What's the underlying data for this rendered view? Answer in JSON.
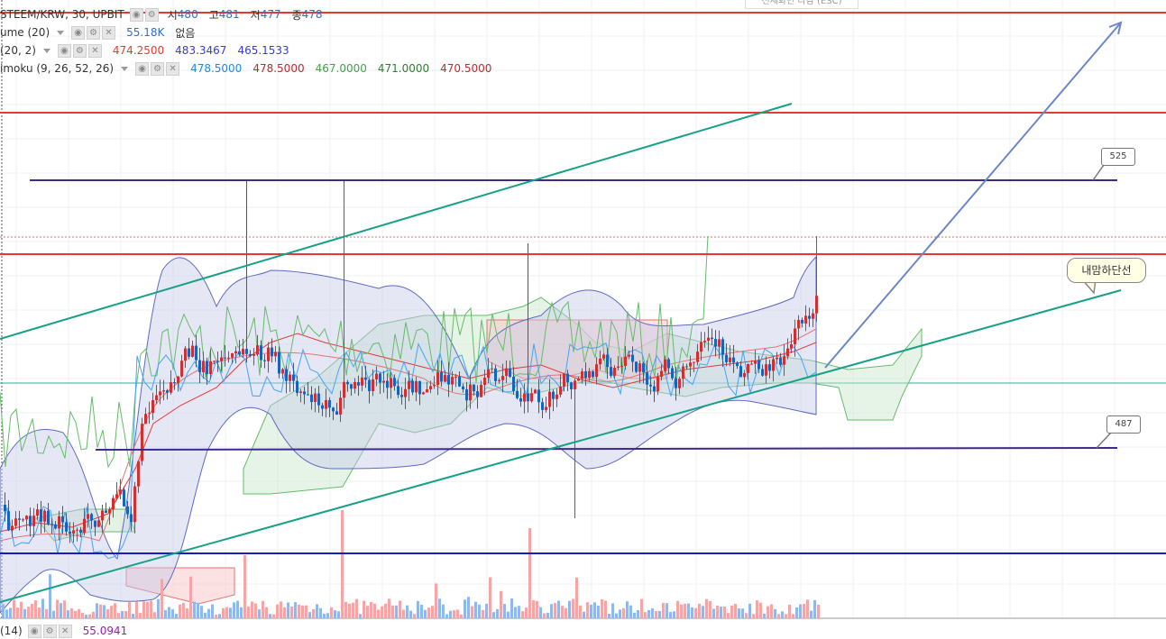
{
  "header": {
    "symbol": "STEEM/KRW, 30, UPBIT",
    "ohlc": [
      {
        "label": "시",
        "value": "480"
      },
      {
        "label": "고",
        "value": "481"
      },
      {
        "label": "저",
        "value": "477"
      },
      {
        "label": "종",
        "value": "478"
      }
    ]
  },
  "esc_hint": "전체화면 나감 (ESC)",
  "indicators": [
    {
      "title": "ume (20)",
      "values": [
        {
          "text": "55.18K",
          "color": "#2b6fd1"
        },
        {
          "text": "없음",
          "color": "#333333"
        }
      ]
    },
    {
      "title": "(20, 2)",
      "values": [
        {
          "text": "474.2500",
          "color": "#e53935"
        },
        {
          "text": "483.3467",
          "color": "#3a3ad6"
        },
        {
          "text": "465.1533",
          "color": "#3a3ad6"
        }
      ]
    },
    {
      "title": "imoku (9, 26, 52, 26)",
      "values": [
        {
          "text": "478.5000",
          "color": "#1e88e5"
        },
        {
          "text": "478.5000",
          "color": "#c62828"
        },
        {
          "text": "467.0000",
          "color": "#43a047"
        },
        {
          "text": "471.0000",
          "color": "#2e7d32"
        },
        {
          "text": "470.5000",
          "color": "#c62828"
        }
      ]
    }
  ],
  "bottom_indicator": {
    "title": "(14)",
    "value": "55.0941",
    "color": "#8e24aa"
  },
  "price_tags": {
    "upper": "525",
    "lower": "487"
  },
  "note": "내맘하단선",
  "colors": {
    "up_candle": "#d32f2f",
    "down_candle": "#1565c0",
    "resistance_line": "#e53935",
    "support_line": "#3f2a8c",
    "channel_line": "#16a085",
    "blue_line": "#1a1ac8",
    "arrow": "#6b86c9"
  }
}
